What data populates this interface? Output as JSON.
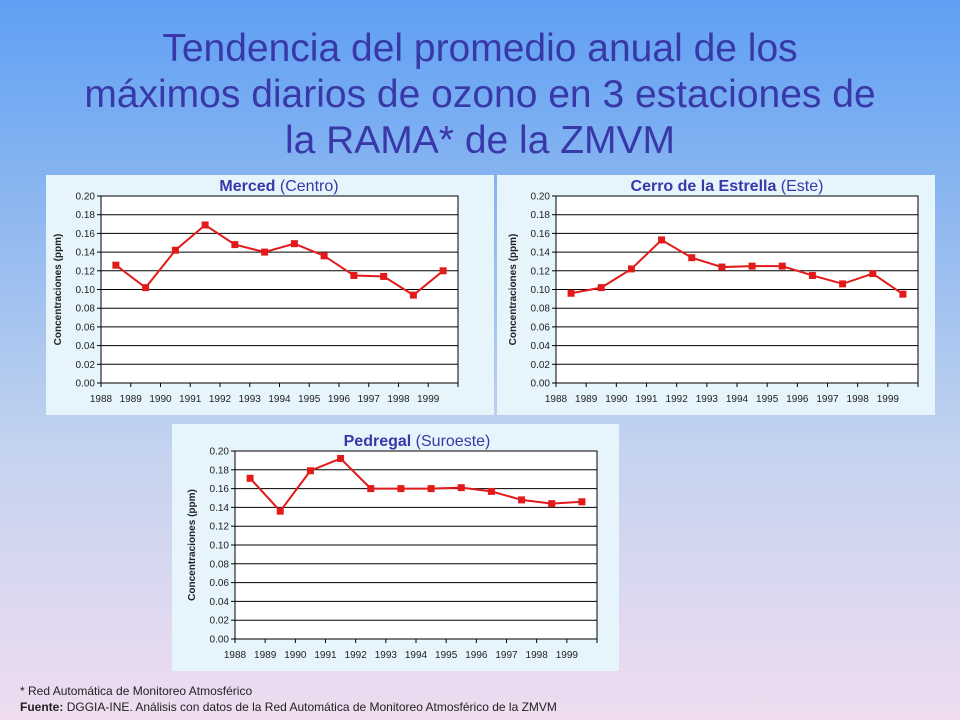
{
  "page": {
    "title_lines": [
      "Tendencia del promedio anual de los",
      "máximos diarios de ozono en 3 estaciones de",
      "la RAMA* de la ZMVM"
    ],
    "footnote": "* Red Automática de Monitoreo Atmosférico",
    "source_label": "Fuente:",
    "source_text": "DGGIA-INE.  Análisis con datos de la Red Automática de Monitoreo Atmosférico de la ZMVM"
  },
  "colors": {
    "series": "#e21a1a",
    "plot_background": "#ffffff",
    "panel_background": "#e6f4fb",
    "title": "#3838a8"
  },
  "chart_data": [
    {
      "id": "merced",
      "type": "line",
      "title_bold": "Merced",
      "title_rest": " (Centro)",
      "xlabel": "",
      "ylabel": "Concentraciones  (ppm)",
      "categories": [
        "1988",
        "1989",
        "1990",
        "1991",
        "1992",
        "1993",
        "1994",
        "1995",
        "1996",
        "1997",
        "1998",
        "1999"
      ],
      "values": [
        0.126,
        0.102,
        0.142,
        0.169,
        0.148,
        0.14,
        0.149,
        0.136,
        0.115,
        0.114,
        0.094,
        0.12
      ],
      "ylim": [
        0,
        0.2
      ],
      "yticks": [
        "0.00",
        "0.02",
        "0.04",
        "0.06",
        "0.08",
        "0.10",
        "0.12",
        "0.14",
        "0.16",
        "0.18",
        "0.20"
      ],
      "grid": true
    },
    {
      "id": "cerro",
      "type": "line",
      "title_bold": "Cerro de la Estrella",
      "title_rest": " (Este)",
      "xlabel": "",
      "ylabel": "Concentraciones  (ppm)",
      "categories": [
        "1988",
        "1989",
        "1990",
        "1991",
        "1992",
        "1993",
        "1994",
        "1995",
        "1996",
        "1997",
        "1998",
        "1999"
      ],
      "values": [
        0.096,
        0.102,
        0.122,
        0.153,
        0.134,
        0.124,
        0.125,
        0.125,
        0.115,
        0.106,
        0.117,
        0.095
      ],
      "ylim": [
        0,
        0.2
      ],
      "yticks": [
        "0.00",
        "0.02",
        "0.04",
        "0.06",
        "0.08",
        "0.10",
        "0.12",
        "0.14",
        "0.16",
        "0.18",
        "0.20"
      ],
      "grid": true
    },
    {
      "id": "pedregal",
      "type": "line",
      "title_bold": "Pedregal",
      "title_rest": " (Suroeste)",
      "xlabel": "",
      "ylabel": "Concentraciones  (ppm)",
      "categories": [
        "1988",
        "1989",
        "1990",
        "1991",
        "1992",
        "1993",
        "1994",
        "1995",
        "1996",
        "1997",
        "1998",
        "1999"
      ],
      "values": [
        0.171,
        0.136,
        0.179,
        0.192,
        0.16,
        0.16,
        0.16,
        0.161,
        0.157,
        0.148,
        0.144,
        0.146
      ],
      "ylim": [
        0,
        0.2
      ],
      "yticks": [
        "0.00",
        "0.02",
        "0.04",
        "0.06",
        "0.08",
        "0.10",
        "0.12",
        "0.14",
        "0.16",
        "0.18",
        "0.20"
      ],
      "grid": true
    }
  ]
}
